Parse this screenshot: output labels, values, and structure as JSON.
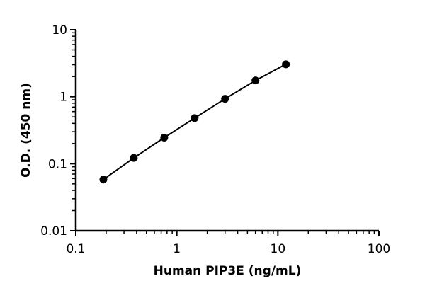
{
  "chart_data": {
    "type": "scatter",
    "xlabel": "Human PIP3E (ng/mL)",
    "ylabel": "O.D. (450 nm)",
    "x_scale": "log",
    "y_scale": "log",
    "xlim": [
      0.1,
      100
    ],
    "ylim": [
      0.01,
      10
    ],
    "x_ticks": [
      "0.1",
      "1",
      "10",
      "100"
    ],
    "y_ticks": [
      "0.01",
      "0.1",
      "1",
      "10"
    ],
    "grid": false,
    "legend": "none",
    "series": [
      {
        "x": [
          0.1875,
          0.375,
          0.75,
          1.5,
          3,
          6,
          12
        ],
        "y": [
          0.058,
          0.122,
          0.245,
          0.48,
          0.93,
          1.75,
          3.05
        ]
      }
    ],
    "colors": {
      "marker": "#000000",
      "line": "#000000",
      "axis": "#000000"
    }
  }
}
